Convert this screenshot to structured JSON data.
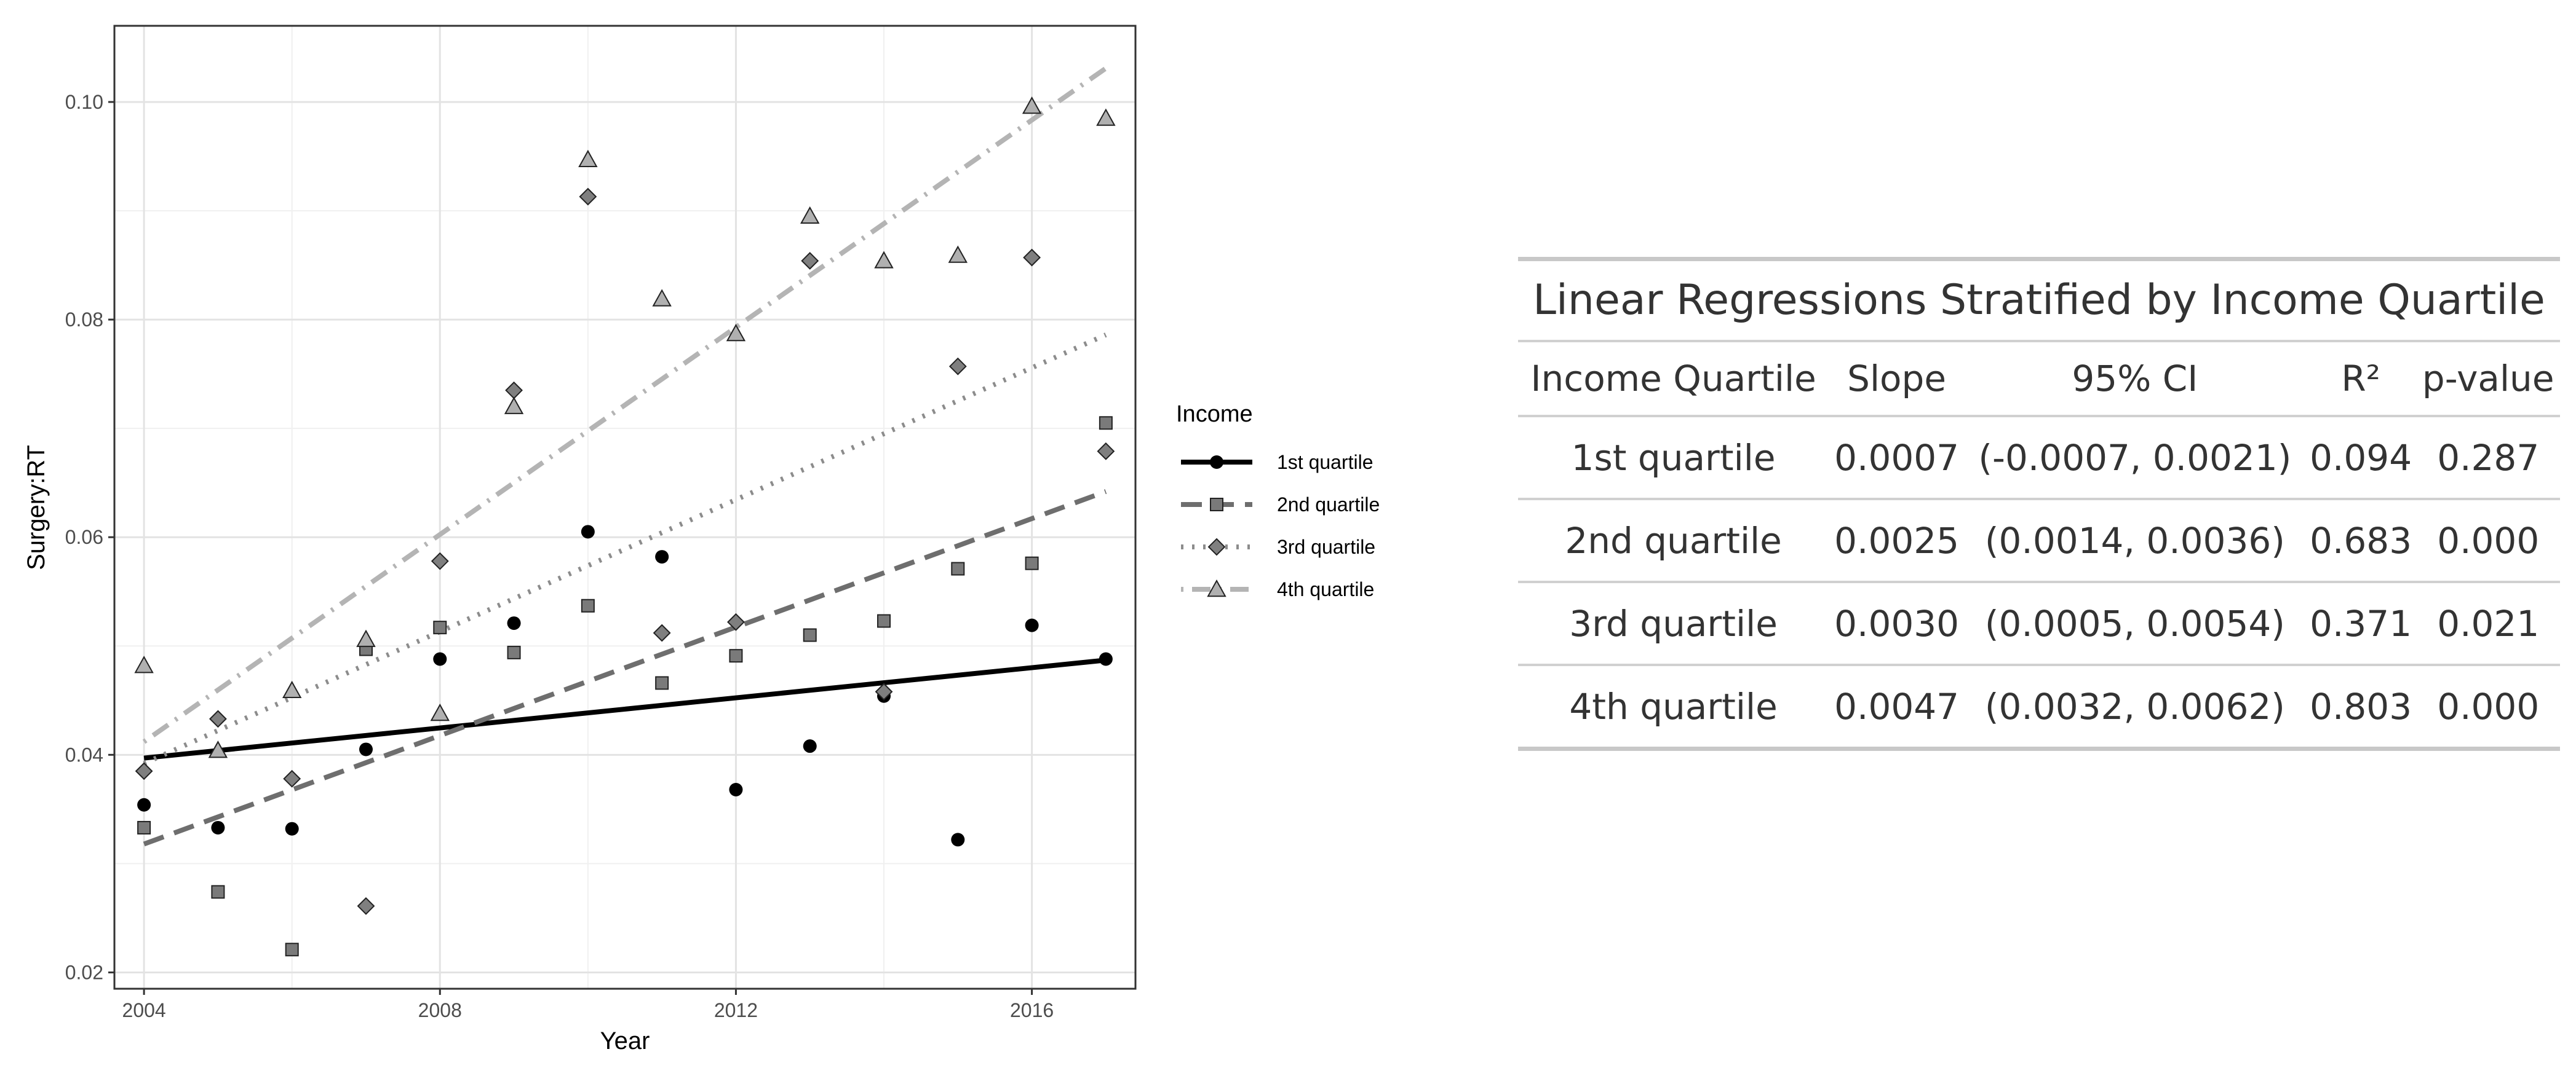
{
  "chart_data": [
    {
      "type": "scatter",
      "xlabel": "Year",
      "ylabel": "Surgery:RT",
      "xlim": [
        2003.6,
        2017.4
      ],
      "ylim": [
        0.0185,
        0.107
      ],
      "x_ticks": [
        2004,
        2008,
        2012,
        2016
      ],
      "y_ticks": [
        0.02,
        0.04,
        0.06,
        0.08,
        0.1
      ],
      "y_tick_labels": [
        "0.02",
        "0.04",
        "0.06",
        "0.08",
        "0.10"
      ],
      "grid": true,
      "legend": {
        "title": "Income",
        "placement": "right"
      },
      "series": [
        {
          "name": "1st quartile",
          "marker": "circle",
          "line": "solid",
          "color": "#000000",
          "x": [
            2004,
            2005,
            2006,
            2007,
            2008,
            2009,
            2010,
            2011,
            2012,
            2013,
            2014,
            2015,
            2016,
            2017
          ],
          "y": [
            0.0354,
            0.0333,
            0.0332,
            0.0405,
            0.0488,
            0.0521,
            0.0605,
            0.0582,
            0.0368,
            0.0408,
            0.0454,
            0.0322,
            0.0519,
            0.0488
          ],
          "fit": [
            [
              2004,
              0.0397
            ],
            [
              2017,
              0.0487
            ]
          ]
        },
        {
          "name": "2nd quartile",
          "marker": "square",
          "line": "dashed",
          "color": "#6e6e6e",
          "x": [
            2004,
            2005,
            2006,
            2007,
            2008,
            2009,
            2010,
            2011,
            2012,
            2013,
            2014,
            2015,
            2016,
            2017
          ],
          "y": [
            0.0333,
            0.0274,
            0.0221,
            0.0497,
            0.0517,
            0.0494,
            0.0537,
            0.0466,
            0.0491,
            0.051,
            0.0523,
            0.0571,
            0.0576,
            0.0705
          ],
          "fit": [
            [
              2004,
              0.0318
            ],
            [
              2017,
              0.0642
            ]
          ]
        },
        {
          "name": "3rd quartile",
          "marker": "diamond",
          "line": "dotted",
          "color": "#8c8c8c",
          "x": [
            2004,
            2005,
            2006,
            2007,
            2008,
            2009,
            2010,
            2011,
            2012,
            2013,
            2014,
            2015,
            2016,
            2017
          ],
          "y": [
            0.0385,
            0.0433,
            0.0378,
            0.0261,
            0.0578,
            0.0735,
            0.0913,
            0.0512,
            0.0522,
            0.0854,
            0.0458,
            0.0757,
            0.0857,
            0.0679
          ],
          "fit": [
            [
              2004,
              0.0392
            ],
            [
              2017,
              0.0786
            ]
          ]
        },
        {
          "name": "4th quartile",
          "marker": "triangle",
          "line": "dotdash",
          "color": "#b4b4b4",
          "x": [
            2004,
            2005,
            2006,
            2007,
            2008,
            2009,
            2010,
            2011,
            2012,
            2013,
            2014,
            2015,
            2016,
            2017
          ],
          "y": [
            0.0482,
            0.0404,
            0.0459,
            0.0506,
            0.0438,
            0.072,
            0.0947,
            0.0819,
            0.0787,
            0.0895,
            0.0854,
            0.0859,
            0.0996,
            0.0985
          ],
          "fit": [
            [
              2004,
              0.0412
            ],
            [
              2017,
              0.1031
            ]
          ]
        }
      ]
    },
    {
      "type": "table",
      "title": "Linear Regressions Stratified by Income Quartile",
      "columns": [
        "Income Quartile",
        "Slope",
        "95% CI",
        "R²",
        "p-value"
      ],
      "rows": [
        [
          "1st quartile",
          "0.0007",
          "(-0.0007, 0.0021)",
          "0.094",
          "0.287"
        ],
        [
          "2nd quartile",
          "0.0025",
          "(0.0014, 0.0036)",
          "0.683",
          "0.000"
        ],
        [
          "3rd quartile",
          "0.0030",
          "(0.0005, 0.0054)",
          "0.371",
          "0.021"
        ],
        [
          "4th quartile",
          "0.0047",
          "(0.0032, 0.0062)",
          "0.803",
          "0.000"
        ]
      ]
    }
  ]
}
